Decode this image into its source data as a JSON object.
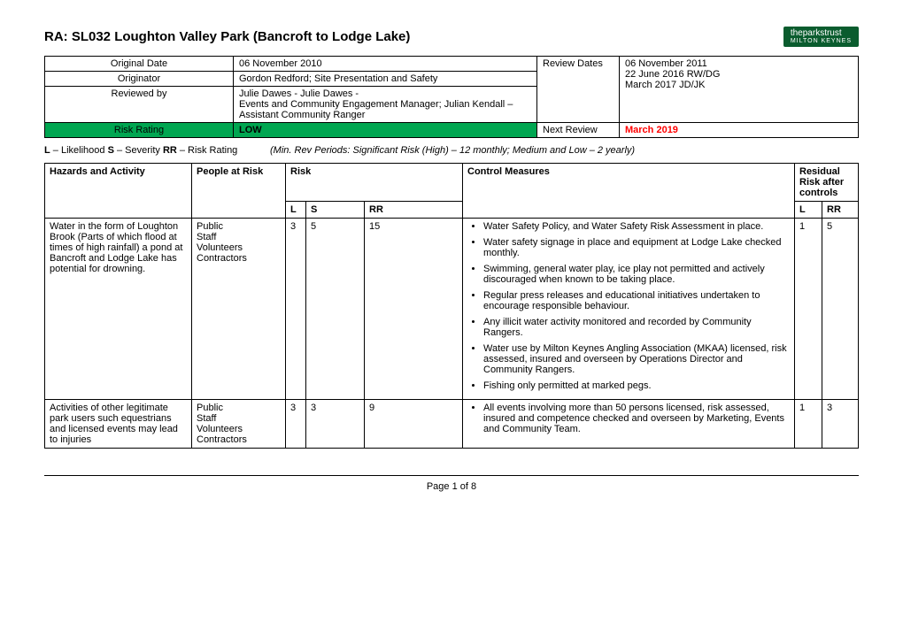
{
  "title": "RA: SL032 Loughton Valley Park (Bancroft to Lodge Lake)",
  "logo": {
    "main": "theparkstrust",
    "sub": "MILTON KEYNES"
  },
  "meta": {
    "rows": [
      {
        "label": "Original Date",
        "value": "06 November 2010"
      },
      {
        "label": "Originator",
        "value": "Gordon Redford; Site Presentation and Safety"
      },
      {
        "label": "Reviewed by",
        "value": "Julie Dawes - Julie Dawes -\nEvents and Community Engagement Manager; Julian Kendall – Assistant Community Ranger"
      }
    ],
    "review_label": "Review Dates",
    "review_values": "06 November 2011\n22 June 2016 RW/DG\nMarch 2017 JD/JK",
    "risk_rating_label": "Risk Rating",
    "risk_rating_value": "LOW",
    "next_review_label": "Next Review",
    "next_review_value": "March 2019"
  },
  "legend": {
    "l": "L",
    "l_text": " – Likelihood    ",
    "s": "S",
    "s_text": " – Severity       ",
    "rr": "RR",
    "rr_text": " – Risk Rating",
    "periods": "(Min. Rev Periods: Significant Risk (High) – 12 monthly; Medium and Low – 2 yearly)"
  },
  "hazards_header": {
    "haz": "Hazards and Activity",
    "people": "People at Risk",
    "risk": "Risk",
    "control": "Control Measures",
    "residual": "Residual Risk after controls",
    "L": "L",
    "S": "S",
    "RR": "RR",
    "rL": "L",
    "rRR": "RR"
  },
  "rows": [
    {
      "hazard": "Water in the form of Loughton Brook (Parts of which flood at times of high rainfall) a  pond at Bancroft and Lodge Lake has potential for drowning.",
      "people": [
        "Public",
        "Staff",
        "Volunteers",
        "Contractors"
      ],
      "L": "3",
      "S": "5",
      "RR": "15",
      "controls": [
        "Water Safety Policy, and Water Safety Risk Assessment in place.",
        "Water safety signage in place and equipment at Lodge Lake checked monthly.",
        "Swimming, general water play, ice play not permitted and actively discouraged when known to be taking place.",
        "Regular press releases and educational initiatives undertaken to encourage responsible behaviour.",
        "Any illicit water activity monitored and recorded by Community Rangers.",
        "Water use by Milton Keynes Angling Association (MKAA) licensed, risk assessed, insured and overseen by Operations Director and Community Rangers.",
        "Fishing only permitted at marked pegs."
      ],
      "rL": "1",
      "rRR": "5"
    },
    {
      "hazard": "Activities of other legitimate park users such equestrians and licensed events may lead to injuries",
      "people": [
        "Public",
        "Staff",
        "Volunteers",
        "Contractors"
      ],
      "L": "3",
      "S": "3",
      "RR": "9",
      "controls": [
        "All events involving more than 50 persons licensed, risk assessed, insured and competence checked and overseen by Marketing, Events and Community Team."
      ],
      "rL": "1",
      "rRR": "3"
    }
  ],
  "footer": {
    "page": "Page ",
    "num": "1",
    "of": " of ",
    "total": "8"
  }
}
